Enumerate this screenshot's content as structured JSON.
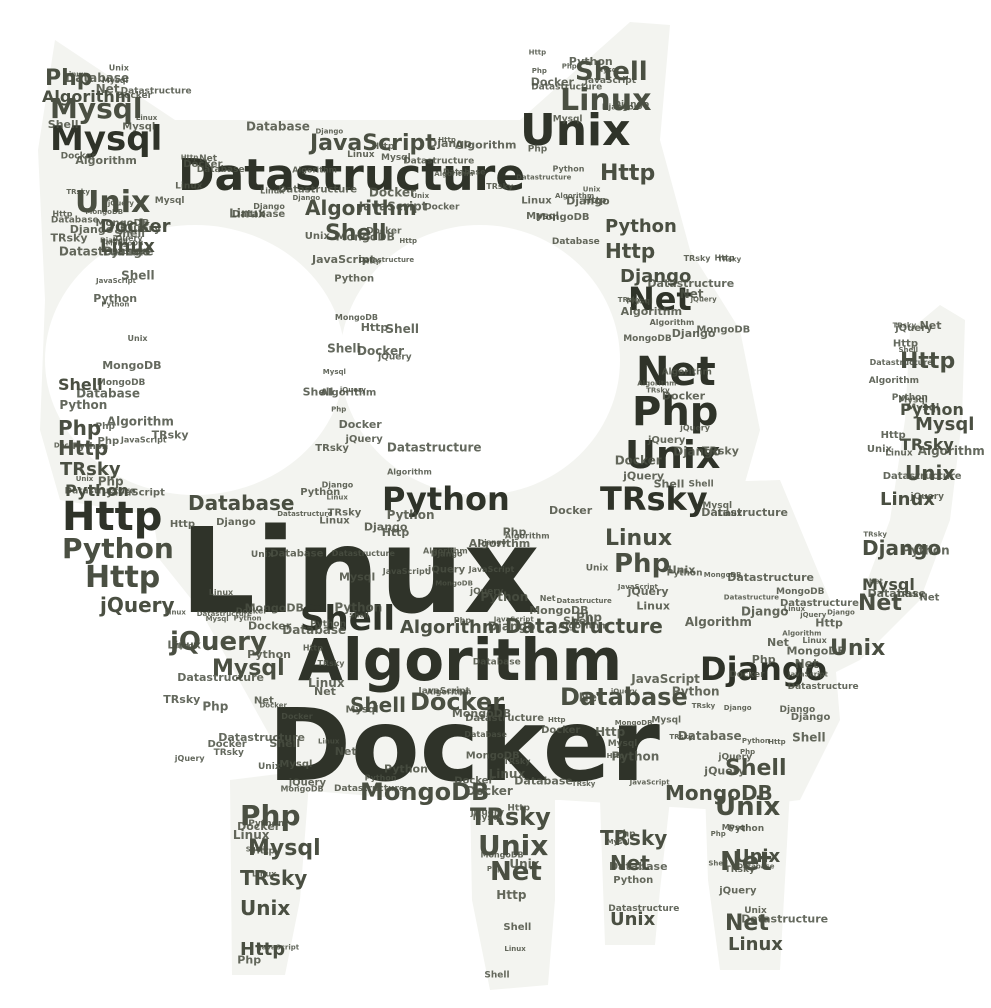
{
  "palette": {
    "background": "#ffffff",
    "silhouette": "#f3f4f0",
    "ink": "#2f3329",
    "ink_light": "#4a4f42"
  },
  "words": [
    "Linux",
    "Docker",
    "Algorithm",
    "Datastructure",
    "Python",
    "Http",
    "Unix",
    "Php",
    "Mysql",
    "Net",
    "TRsky",
    "Shell",
    "Django",
    "jQuery",
    "JavaScript",
    "MongoDB",
    "Database"
  ]
}
